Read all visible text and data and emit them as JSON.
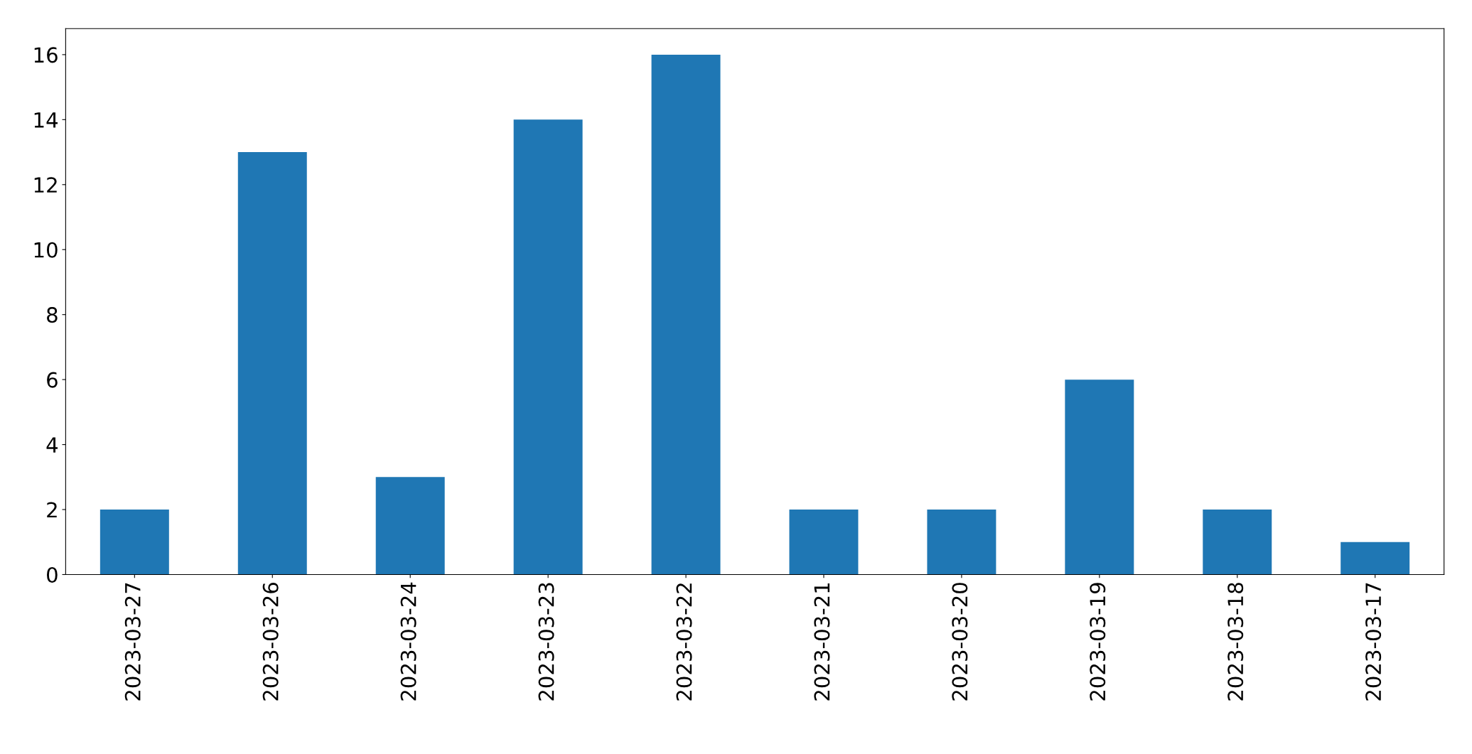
{
  "chart_data": {
    "type": "bar",
    "categories": [
      "2023-03-27",
      "2023-03-26",
      "2023-03-24",
      "2023-03-23",
      "2023-03-22",
      "2023-03-21",
      "2023-03-20",
      "2023-03-19",
      "2023-03-18",
      "2023-03-17"
    ],
    "values": [
      2,
      13,
      3,
      14,
      16,
      2,
      2,
      6,
      2,
      1
    ],
    "color": "#1f77b4",
    "ylim": [
      0,
      16.8
    ],
    "yticks": [
      0,
      2,
      4,
      6,
      8,
      10,
      12,
      14,
      16
    ],
    "grid": false,
    "legend": false
  }
}
